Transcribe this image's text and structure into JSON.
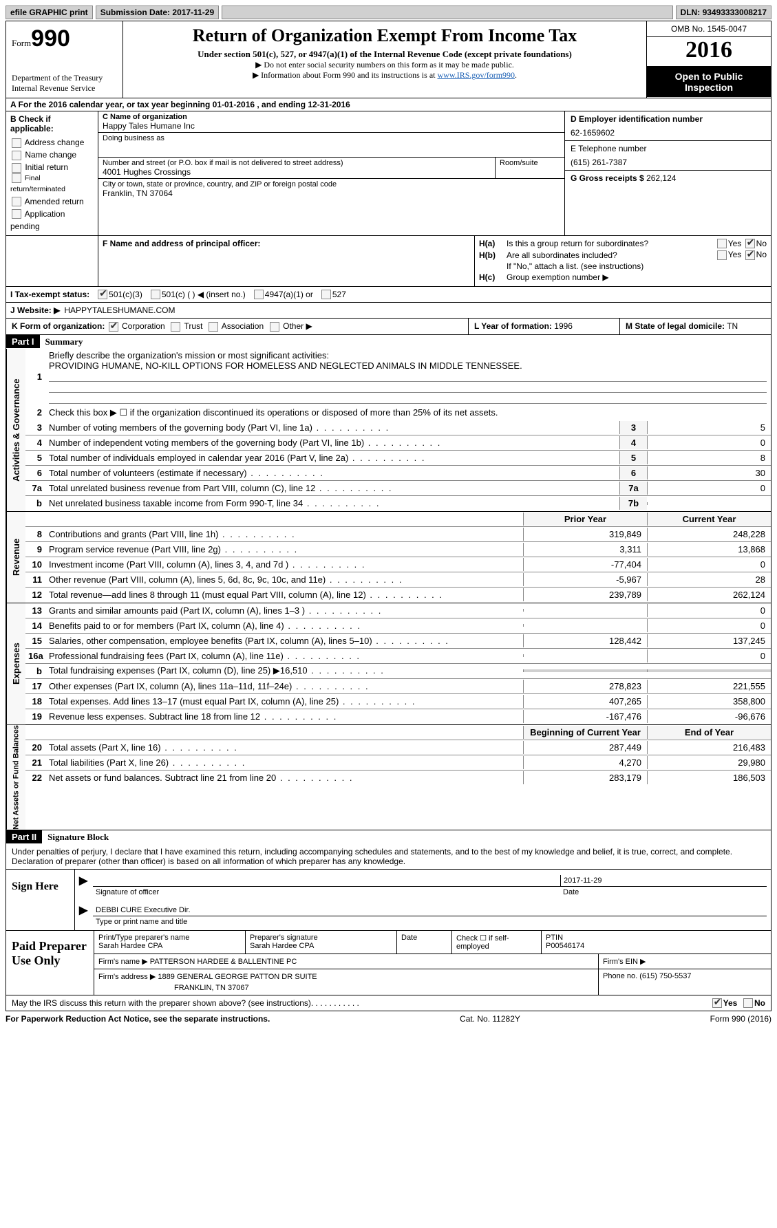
{
  "colors": {
    "black": "#000000",
    "white": "#ffffff",
    "gray_bg": "#d0d0d0",
    "link": "#1a5fb4",
    "light_border": "#888888",
    "box_bg": "#f5f5f5"
  },
  "topbar": {
    "efile": "efile GRAPHIC print",
    "submission_label": "Submission Date:",
    "submission_date": "2017-11-29",
    "dln_label": "DLN:",
    "dln": "93493333008217"
  },
  "header": {
    "form_label": "Form",
    "form_number": "990",
    "dept": "Department of the Treasury",
    "irs": "Internal Revenue Service",
    "title": "Return of Organization Exempt From Income Tax",
    "subtitle": "Under section 501(c), 527, or 4947(a)(1) of the Internal Revenue Code (except private foundations)",
    "note1": "▶ Do not enter social security numbers on this form as it may be made public.",
    "note2_pre": "▶ Information about Form 990 and its instructions is at ",
    "note2_link": "www.IRS.gov/form990",
    "omb": "OMB No. 1545-0047",
    "year": "2016",
    "open_inspection": "Open to Public Inspection"
  },
  "sectionA": {
    "text": "A  For the 2016 calendar year, or tax year beginning 01-01-2016   , and ending 12-31-2016"
  },
  "sectionB": {
    "label": "B Check if applicable:",
    "options": [
      {
        "label": "Address change",
        "checked": false
      },
      {
        "label": "Name change",
        "checked": false
      },
      {
        "label": "Initial return",
        "checked": false
      },
      {
        "label": "Final return/terminated",
        "checked": false
      },
      {
        "label": "Amended return",
        "checked": false
      },
      {
        "label": "Application pending",
        "checked": false
      }
    ]
  },
  "sectionC": {
    "name_label": "C Name of organization",
    "name": "Happy Tales Humane Inc",
    "dba_label": "Doing business as",
    "dba": "",
    "street_label": "Number and street (or P.O. box if mail is not delivered to street address)",
    "street": "4001 Hughes Crossings",
    "room_label": "Room/suite",
    "room": "",
    "city_label": "City or town, state or province, country, and ZIP or foreign postal code",
    "city": "Franklin, TN  37064"
  },
  "sectionD": {
    "label": "D Employer identification number",
    "value": "62-1659602"
  },
  "sectionE": {
    "label": "E Telephone number",
    "value": "(615) 261-7387"
  },
  "sectionG": {
    "label": "G Gross receipts $",
    "value": "262,124"
  },
  "sectionF": {
    "label": "F Name and address of principal officer:",
    "value": ""
  },
  "sectionH": {
    "a_label": "H(a)",
    "a_text": "Is this a group return for subordinates?",
    "a_yes": false,
    "a_no": true,
    "b_label": "H(b)",
    "b_text": "Are all subordinates included?",
    "b_yes": false,
    "b_no": true,
    "b_note": "If \"No,\" attach a list. (see instructions)",
    "c_label": "H(c)",
    "c_text": "Group exemption number ▶"
  },
  "sectionI": {
    "label": "I  Tax-exempt status:",
    "opt_501c3": {
      "label": "501(c)(3)",
      "checked": true
    },
    "opt_501c": {
      "label": "501(c) (   ) ◀ (insert no.)",
      "checked": false
    },
    "opt_4947": {
      "label": "4947(a)(1) or",
      "checked": false
    },
    "opt_527": {
      "label": "527",
      "checked": false
    }
  },
  "sectionJ": {
    "label": "J  Website: ▶",
    "value": "HAPPYTALESHUMANE.COM"
  },
  "sectionK": {
    "label": "K Form of organization:",
    "opts": [
      {
        "label": "Corporation",
        "checked": true
      },
      {
        "label": "Trust",
        "checked": false
      },
      {
        "label": "Association",
        "checked": false
      },
      {
        "label": "Other ▶",
        "checked": false
      }
    ]
  },
  "sectionL": {
    "label": "L Year of formation:",
    "value": "1996"
  },
  "sectionM": {
    "label": "M State of legal domicile:",
    "value": "TN"
  },
  "part1": {
    "hdr": "Part I",
    "title": "Summary"
  },
  "governance": {
    "label": "Activities & Governance",
    "line1_label": "Briefly describe the organization's mission or most significant activities:",
    "mission": "PROVIDING HUMANE, NO-KILL OPTIONS FOR HOMELESS AND NEGLECTED ANIMALS IN MIDDLE TENNESSEE.",
    "line2": "Check this box ▶ ☐  if the organization discontinued its operations or disposed of more than 25% of its net assets.",
    "rows": [
      {
        "num": "3",
        "desc": "Number of voting members of the governing body (Part VI, line 1a)",
        "box": "3",
        "val": "5"
      },
      {
        "num": "4",
        "desc": "Number of independent voting members of the governing body (Part VI, line 1b)",
        "box": "4",
        "val": "0"
      },
      {
        "num": "5",
        "desc": "Total number of individuals employed in calendar year 2016 (Part V, line 2a)",
        "box": "5",
        "val": "8"
      },
      {
        "num": "6",
        "desc": "Total number of volunteers (estimate if necessary)",
        "box": "6",
        "val": "30"
      },
      {
        "num": "7a",
        "desc": "Total unrelated business revenue from Part VIII, column (C), line 12",
        "box": "7a",
        "val": "0"
      },
      {
        "num": "b",
        "desc": "Net unrelated business taxable income from Form 990-T, line 34",
        "box": "7b",
        "val": ""
      }
    ]
  },
  "revenue": {
    "label": "Revenue",
    "hdr_prior": "Prior Year",
    "hdr_curr": "Current Year",
    "rows": [
      {
        "num": "8",
        "desc": "Contributions and grants (Part VIII, line 1h)",
        "prior": "319,849",
        "curr": "248,228"
      },
      {
        "num": "9",
        "desc": "Program service revenue (Part VIII, line 2g)",
        "prior": "3,311",
        "curr": "13,868"
      },
      {
        "num": "10",
        "desc": "Investment income (Part VIII, column (A), lines 3, 4, and 7d )",
        "prior": "-77,404",
        "curr": "0"
      },
      {
        "num": "11",
        "desc": "Other revenue (Part VIII, column (A), lines 5, 6d, 8c, 9c, 10c, and 11e)",
        "prior": "-5,967",
        "curr": "28"
      },
      {
        "num": "12",
        "desc": "Total revenue—add lines 8 through 11 (must equal Part VIII, column (A), line 12)",
        "prior": "239,789",
        "curr": "262,124"
      }
    ]
  },
  "expenses": {
    "label": "Expenses",
    "rows": [
      {
        "num": "13",
        "desc": "Grants and similar amounts paid (Part IX, column (A), lines 1–3 )",
        "prior": "",
        "curr": "0"
      },
      {
        "num": "14",
        "desc": "Benefits paid to or for members (Part IX, column (A), line 4)",
        "prior": "",
        "curr": "0"
      },
      {
        "num": "15",
        "desc": "Salaries, other compensation, employee benefits (Part IX, column (A), lines 5–10)",
        "prior": "128,442",
        "curr": "137,245"
      },
      {
        "num": "16a",
        "desc": "Professional fundraising fees (Part IX, column (A), line 11e)",
        "prior": "",
        "curr": "0"
      },
      {
        "num": "b",
        "desc": "Total fundraising expenses (Part IX, column (D), line 25) ▶16,510",
        "prior": "SHADE",
        "curr": "SHADE"
      },
      {
        "num": "17",
        "desc": "Other expenses (Part IX, column (A), lines 11a–11d, 11f–24e)",
        "prior": "278,823",
        "curr": "221,555"
      },
      {
        "num": "18",
        "desc": "Total expenses. Add lines 13–17 (must equal Part IX, column (A), line 25)",
        "prior": "407,265",
        "curr": "358,800"
      },
      {
        "num": "19",
        "desc": "Revenue less expenses. Subtract line 18 from line 12",
        "prior": "-167,476",
        "curr": "-96,676"
      }
    ]
  },
  "netassets": {
    "label": "Net Assets or Fund Balances",
    "hdr_prior": "Beginning of Current Year",
    "hdr_curr": "End of Year",
    "rows": [
      {
        "num": "20",
        "desc": "Total assets (Part X, line 16)",
        "prior": "287,449",
        "curr": "216,483"
      },
      {
        "num": "21",
        "desc": "Total liabilities (Part X, line 26)",
        "prior": "4,270",
        "curr": "29,980"
      },
      {
        "num": "22",
        "desc": "Net assets or fund balances. Subtract line 21 from line 20",
        "prior": "283,179",
        "curr": "186,503"
      }
    ]
  },
  "part2": {
    "hdr": "Part II",
    "title": "Signature Block",
    "intro": "Under penalties of perjury, I declare that I have examined this return, including accompanying schedules and statements, and to the best of my knowledge and belief, it is true, correct, and complete. Declaration of preparer (other than officer) is based on all information of which preparer has any knowledge.",
    "sign_here": "Sign Here",
    "sig_of_officer": "Signature of officer",
    "sig_date_label": "Date",
    "sig_date": "2017-11-29",
    "officer_name": "DEBBI CURE Executive Dir.",
    "type_name_label": "Type or print name and title"
  },
  "paid": {
    "label": "Paid Preparer Use Only",
    "prep_name_label": "Print/Type preparer's name",
    "prep_name": "Sarah Hardee CPA",
    "prep_sig_label": "Preparer's signature",
    "prep_sig": "Sarah Hardee CPA",
    "date_label": "Date",
    "check_label": "Check ☐ if self-employed",
    "ptin_label": "PTIN",
    "ptin": "P00546174",
    "firm_name_label": "Firm's name    ▶",
    "firm_name": "PATTERSON HARDEE & BALLENTINE PC",
    "firm_ein_label": "Firm's EIN ▶",
    "firm_addr_label": "Firm's address ▶",
    "firm_addr": "1889 GENERAL GEORGE PATTON DR SUITE",
    "firm_city": "FRANKLIN, TN  37067",
    "phone_label": "Phone no.",
    "phone": "(615) 750-5537"
  },
  "discuss": {
    "text": "May the IRS discuss this return with the preparer shown above? (see instructions)",
    "yes": true,
    "no": false
  },
  "footer": {
    "left": "For Paperwork Reduction Act Notice, see the separate instructions.",
    "mid": "Cat. No. 11282Y",
    "right": "Form 990 (2016)"
  }
}
